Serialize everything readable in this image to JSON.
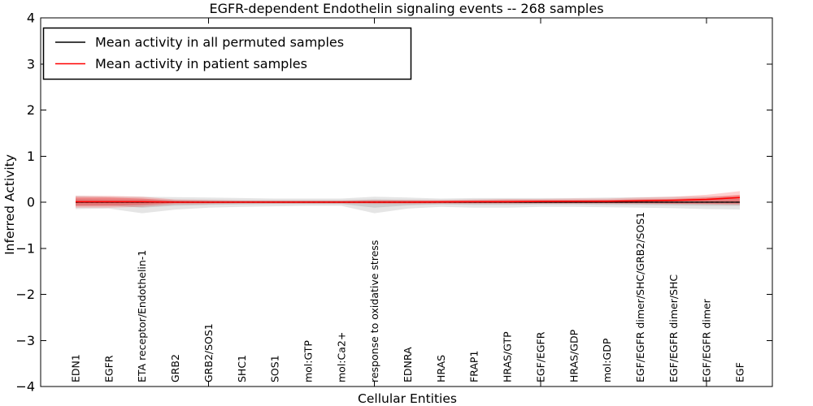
{
  "chart_data": {
    "type": "line",
    "title": "EGFR-dependent Endothelin signaling events -- 268 samples",
    "xlabel": "Cellular Entities",
    "ylabel": "Inferred Activity",
    "ylim": [
      -4,
      4
    ],
    "yticks": [
      -4,
      -3,
      -2,
      -1,
      0,
      1,
      2,
      3,
      4
    ],
    "ytick_labels": [
      "−4",
      "−3",
      "−2",
      "−1",
      "0",
      "1",
      "2",
      "3",
      "4"
    ],
    "xtick_positions": [
      5,
      10,
      15,
      20
    ],
    "grid": false,
    "categories": [
      "EDN1",
      "EGFR",
      "ETA receptor/Endothelin-1",
      "GRB2",
      "GRB2/SOS1",
      "SHC1",
      "SOS1",
      "mol:GTP",
      "mol:Ca2+",
      "response to oxidative stress",
      "EDNRA",
      "HRAS",
      "FRAP1",
      "HRAS/GTP",
      "EGF/EGFR",
      "HRAS/GDP",
      "mol:GDP",
      "EGF/EGFR dimer/SHC/GRB2/SOS1",
      "EGF/EGFR dimer/SHC",
      "EGF/EGFR dimer",
      "EGF"
    ],
    "legend": {
      "position": "upper left",
      "entries": [
        {
          "label": "Mean activity in all permuted samples",
          "color": "#000000",
          "style": "solid"
        },
        {
          "label": "Mean activity in patient samples",
          "color": "#ff0000",
          "style": "solid"
        }
      ]
    },
    "series": [
      {
        "name": "Mean activity in all permuted samples",
        "color": "#000000",
        "style": "solid",
        "width": 1.2,
        "values": [
          0,
          0,
          0,
          0,
          0,
          0,
          0,
          0,
          0,
          0,
          0,
          0,
          0,
          0,
          0,
          0,
          0,
          0,
          0,
          0,
          0
        ]
      },
      {
        "name": "zero reference",
        "color": "#000000",
        "style": "dashed",
        "width": 1.2,
        "values": [
          0,
          0,
          0,
          0,
          0,
          0,
          0,
          0,
          0,
          0,
          0,
          0,
          0,
          0,
          0,
          0,
          0,
          0,
          0,
          0,
          0
        ]
      },
      {
        "name": "Mean activity in patient samples",
        "color": "#ff0000",
        "style": "solid",
        "width": 1.6,
        "values": [
          0.01,
          0.01,
          0.01,
          0,
          0,
          0,
          0,
          0,
          0,
          0,
          0,
          0.005,
          0.01,
          0.01,
          0.015,
          0.02,
          0.02,
          0.03,
          0.04,
          0.06,
          0.1
        ]
      }
    ],
    "bands": [
      {
        "name": "permuted samples outer band",
        "color": "#000000",
        "opacity": 0.1,
        "upper": [
          0.14,
          0.12,
          0.12,
          0.11,
          0.1,
          0.09,
          0.08,
          0.08,
          0.08,
          0.12,
          0.1,
          0.08,
          0.09,
          0.09,
          0.09,
          0.09,
          0.1,
          0.11,
          0.12,
          0.13,
          0.14
        ],
        "lower": [
          -0.15,
          -0.14,
          -0.24,
          -0.16,
          -0.12,
          -0.1,
          -0.09,
          -0.08,
          -0.08,
          -0.24,
          -0.14,
          -0.1,
          -0.12,
          -0.12,
          -0.1,
          -0.1,
          -0.11,
          -0.12,
          -0.13,
          -0.15,
          -0.16
        ]
      },
      {
        "name": "permuted samples inner band",
        "color": "#000000",
        "opacity": 0.1,
        "upper": [
          0.07,
          0.06,
          0.06,
          0.05,
          0.05,
          0.04,
          0.04,
          0.04,
          0.04,
          0.06,
          0.05,
          0.04,
          0.05,
          0.05,
          0.05,
          0.05,
          0.05,
          0.06,
          0.06,
          0.07,
          0.07
        ],
        "lower": [
          -0.08,
          -0.07,
          -0.12,
          -0.08,
          -0.06,
          -0.05,
          -0.04,
          -0.04,
          -0.04,
          -0.12,
          -0.07,
          -0.05,
          -0.06,
          -0.06,
          -0.05,
          -0.05,
          -0.06,
          -0.06,
          -0.07,
          -0.08,
          -0.08
        ]
      },
      {
        "name": "patient samples outer band",
        "color": "#ff0000",
        "opacity": 0.18,
        "upper": [
          0.14,
          0.14,
          0.12,
          0.06,
          0.05,
          0.04,
          0.04,
          0.04,
          0.04,
          0.05,
          0.05,
          0.05,
          0.06,
          0.07,
          0.07,
          0.08,
          0.08,
          0.1,
          0.12,
          0.16,
          0.24
        ],
        "lower": [
          -0.12,
          -0.12,
          -0.1,
          -0.05,
          -0.04,
          -0.03,
          -0.03,
          -0.03,
          -0.03,
          -0.04,
          -0.04,
          -0.03,
          -0.03,
          -0.03,
          -0.03,
          -0.03,
          -0.03,
          -0.04,
          -0.04,
          -0.05,
          -0.06
        ]
      },
      {
        "name": "patient samples inner band",
        "color": "#ff0000",
        "opacity": 0.28,
        "upper": [
          0.1,
          0.1,
          0.08,
          0.03,
          0.02,
          0.02,
          0.02,
          0.02,
          0.02,
          0.03,
          0.03,
          0.03,
          0.03,
          0.04,
          0.04,
          0.04,
          0.05,
          0.06,
          0.07,
          0.1,
          0.16
        ],
        "lower": [
          -0.08,
          -0.08,
          -0.06,
          -0.02,
          -0.02,
          -0.01,
          -0.01,
          -0.01,
          -0.01,
          -0.02,
          -0.02,
          -0.02,
          -0.02,
          -0.02,
          -0.02,
          -0.02,
          -0.02,
          -0.02,
          -0.03,
          -0.03,
          -0.03
        ]
      }
    ]
  }
}
